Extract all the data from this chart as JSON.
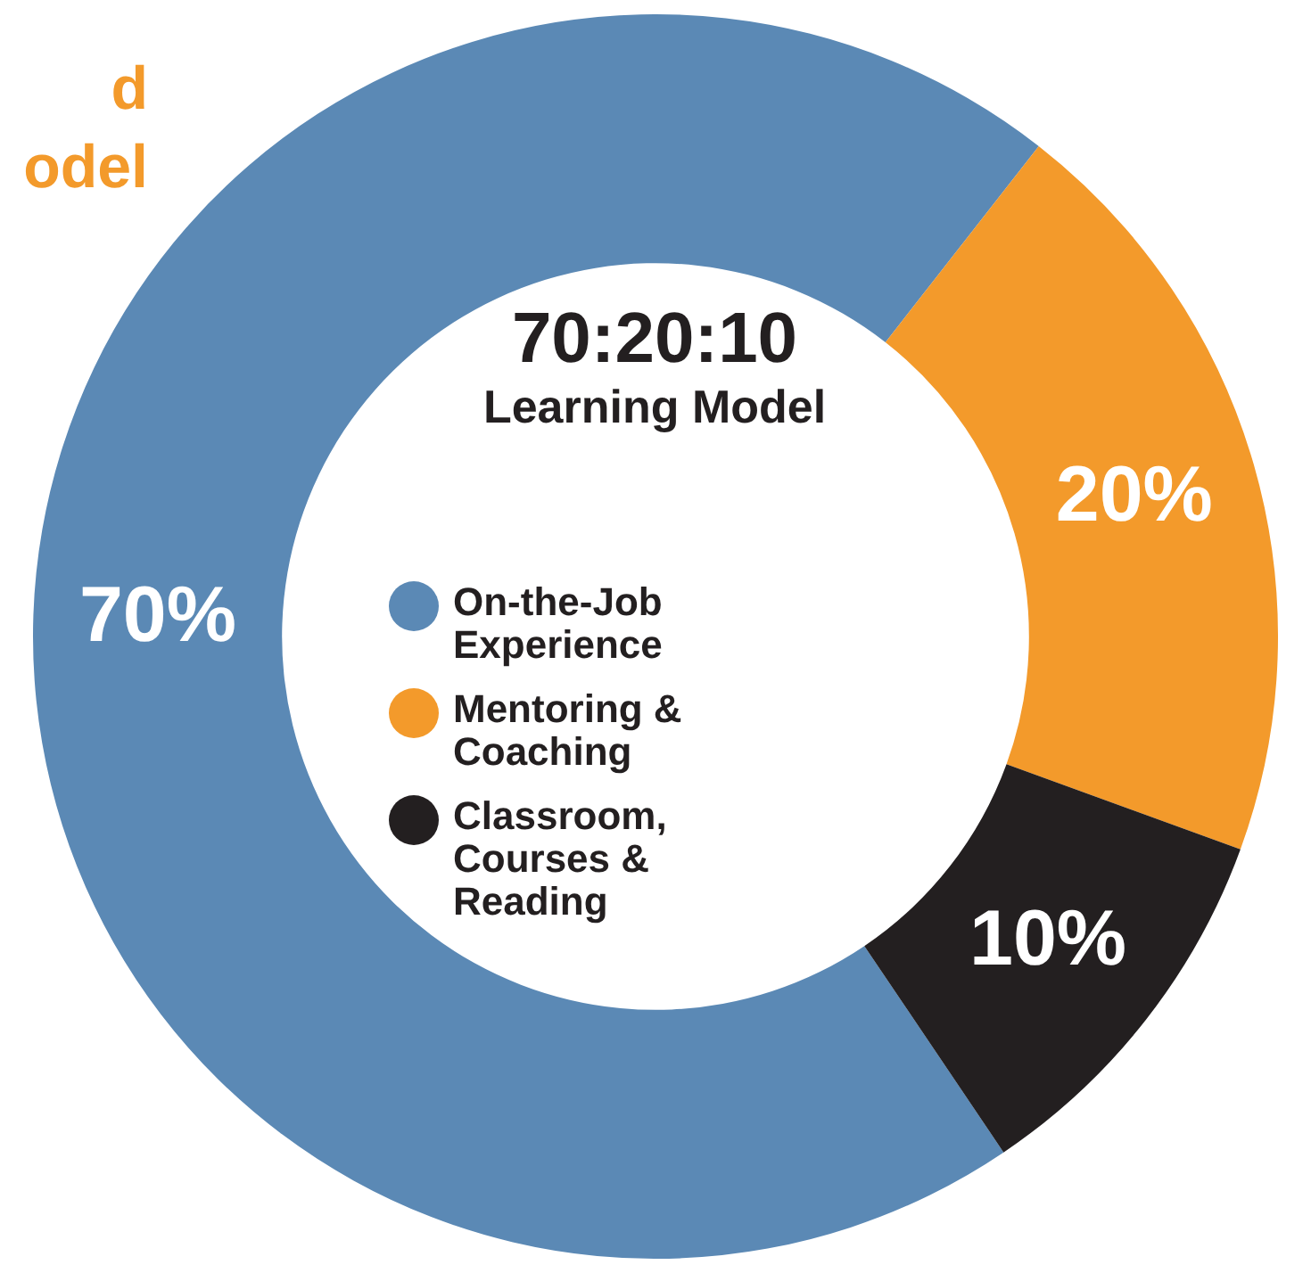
{
  "chart_data": {
    "type": "donut",
    "title": "70:20:10",
    "subtitle": "Learning Model",
    "annotations": [
      "d",
      "odel"
    ],
    "categories": [
      "On-the-Job Experience",
      "Mentoring & Coaching",
      "Classroom, Courses & Reading"
    ],
    "values": [
      70,
      20,
      10
    ],
    "colors": [
      "#5b89b5",
      "#f39a2b",
      "#231f20"
    ],
    "value_labels": [
      "70%",
      "20%",
      "10%"
    ],
    "legend": "center"
  }
}
